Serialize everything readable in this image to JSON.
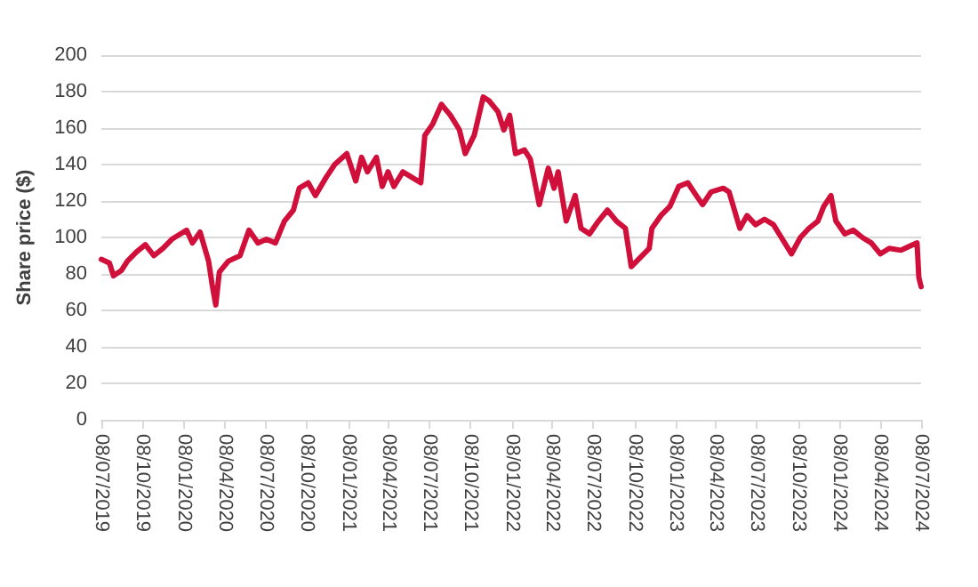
{
  "chart_data": {
    "type": "line",
    "ylabel": "Share price ($)",
    "xlim": [
      "2019-07-08",
      "2024-07-08"
    ],
    "ylim": [
      0,
      200
    ],
    "yticks": [
      0,
      20,
      40,
      60,
      80,
      100,
      120,
      140,
      160,
      180,
      200
    ],
    "xticks": [
      {
        "value": "2019-07-08",
        "label": "08/07/2019"
      },
      {
        "value": "2019-10-08",
        "label": "08/10/2019"
      },
      {
        "value": "2020-01-08",
        "label": "08/01/2020"
      },
      {
        "value": "2020-04-08",
        "label": "08/04/2020"
      },
      {
        "value": "2020-07-08",
        "label": "08/07/2020"
      },
      {
        "value": "2020-10-08",
        "label": "08/10/2020"
      },
      {
        "value": "2021-01-08",
        "label": "08/01/2021"
      },
      {
        "value": "2021-04-08",
        "label": "08/04/2021"
      },
      {
        "value": "2021-07-08",
        "label": "08/07/2021"
      },
      {
        "value": "2021-10-08",
        "label": "08/10/2021"
      },
      {
        "value": "2022-01-08",
        "label": "08/01/2022"
      },
      {
        "value": "2022-04-08",
        "label": "08/04/2022"
      },
      {
        "value": "2022-07-08",
        "label": "08/07/2022"
      },
      {
        "value": "2022-10-08",
        "label": "08/10/2022"
      },
      {
        "value": "2023-01-08",
        "label": "08/01/2023"
      },
      {
        "value": "2023-04-08",
        "label": "08/04/2023"
      },
      {
        "value": "2023-07-08",
        "label": "08/07/2023"
      },
      {
        "value": "2023-10-08",
        "label": "08/10/2023"
      },
      {
        "value": "2024-01-08",
        "label": "08/01/2024"
      },
      {
        "value": "2024-04-08",
        "label": "08/04/2024"
      },
      {
        "value": "2024-07-08",
        "label": "08/07/2024"
      }
    ],
    "grid": "y",
    "marker": "none",
    "line_style": "solid",
    "x": [
      "2019-07-08",
      "2019-07-26",
      "2019-08-04",
      "2019-08-22",
      "2019-09-04",
      "2019-09-24",
      "2019-10-14",
      "2019-11-02",
      "2019-11-22",
      "2019-12-12",
      "2020-01-14",
      "2020-01-27",
      "2020-02-13",
      "2020-03-03",
      "2020-03-11",
      "2020-03-19",
      "2020-03-27",
      "2020-04-16",
      "2020-05-12",
      "2020-06-01",
      "2020-06-21",
      "2020-07-10",
      "2020-07-30",
      "2020-08-19",
      "2020-09-08",
      "2020-09-21",
      "2020-10-11",
      "2020-10-27",
      "2020-11-20",
      "2020-12-09",
      "2021-01-05",
      "2021-01-25",
      "2021-02-07",
      "2021-02-20",
      "2021-03-12",
      "2021-03-25",
      "2021-04-07",
      "2021-04-20",
      "2021-05-10",
      "2021-05-30",
      "2021-06-19",
      "2021-06-28",
      "2021-07-15",
      "2021-08-04",
      "2021-08-24",
      "2021-09-13",
      "2021-09-26",
      "2021-10-16",
      "2021-11-05",
      "2021-11-18",
      "2021-12-08",
      "2021-12-21",
      "2022-01-03",
      "2022-01-16",
      "2022-02-05",
      "2022-02-18",
      "2022-03-10",
      "2022-03-30",
      "2022-04-12",
      "2022-04-21",
      "2022-05-09",
      "2022-05-29",
      "2022-06-11",
      "2022-06-30",
      "2022-07-20",
      "2022-08-09",
      "2022-08-29",
      "2022-09-18",
      "2022-10-01",
      "2022-10-21",
      "2022-11-10",
      "2022-11-16",
      "2022-12-06",
      "2022-12-26",
      "2023-01-15",
      "2023-02-04",
      "2023-02-23",
      "2023-03-09",
      "2023-03-28",
      "2023-04-24",
      "2023-05-07",
      "2023-05-31",
      "2023-06-16",
      "2023-07-05",
      "2023-07-25",
      "2023-08-14",
      "2023-09-03",
      "2023-09-23",
      "2023-10-13",
      "2023-11-01",
      "2023-11-21",
      "2023-12-04",
      "2023-12-20",
      "2023-12-31",
      "2024-01-20",
      "2024-02-08",
      "2024-02-28",
      "2024-03-19",
      "2024-04-08",
      "2024-04-28",
      "2024-05-24",
      "2024-06-19",
      "2024-06-29",
      "2024-07-03",
      "2024-07-08"
    ],
    "series": [
      {
        "color": "#d0103a",
        "values": [
          88,
          86,
          79,
          82,
          87,
          92,
          96,
          90,
          94,
          99,
          104,
          97,
          103,
          87,
          74,
          63,
          81,
          87,
          90,
          104,
          97,
          99,
          97,
          109,
          115,
          127,
          130,
          123,
          133,
          140,
          146,
          131,
          144,
          136,
          144,
          128,
          136,
          128,
          136,
          133,
          130,
          156,
          162,
          173,
          167,
          159,
          146,
          156,
          177,
          175,
          169,
          159,
          167,
          146,
          148,
          143,
          118,
          138,
          127,
          136,
          109,
          123,
          105,
          102,
          109,
          115,
          109,
          105,
          84,
          89,
          94,
          105,
          112,
          117,
          128,
          130,
          123,
          118,
          125,
          127,
          125,
          105,
          112,
          107,
          110,
          107,
          99,
          91,
          100,
          105,
          109,
          117,
          123,
          109,
          102,
          104,
          100,
          97,
          91,
          94,
          93,
          96,
          97,
          78,
          73
        ]
      }
    ]
  }
}
